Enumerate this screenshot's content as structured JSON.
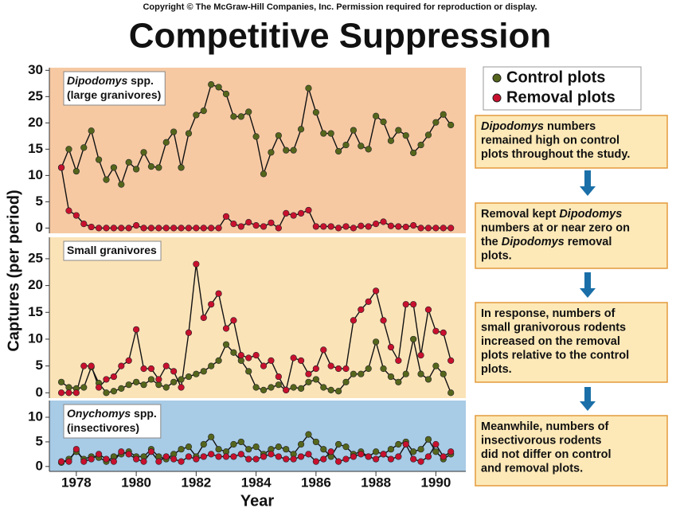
{
  "copyright": "Copyright © The McGraw-Hill Companies, Inc. Permission required for reproduction or display.",
  "title": "Competitive Suppression",
  "ylabel": "Captures (per period)",
  "xlabel": "Year",
  "annotations": [
    [
      [
        {
          "t": "Dipodomys",
          "i": true
        },
        {
          "t": " numbers"
        }
      ],
      [
        {
          "t": "remained high on control"
        }
      ],
      [
        {
          "t": "plots throughout the study."
        }
      ]
    ],
    [
      [
        {
          "t": "Removal kept "
        },
        {
          "t": "Dipodomys",
          "i": true
        }
      ],
      [
        {
          "t": "numbers at or near zero on"
        }
      ],
      [
        {
          "t": "the "
        },
        {
          "t": "Dipodomys",
          "i": true
        },
        {
          "t": " removal"
        }
      ],
      [
        {
          "t": "plots."
        }
      ]
    ],
    [
      [
        {
          "t": "In response, numbers of"
        }
      ],
      [
        {
          "t": "small granivorous rodents"
        }
      ],
      [
        {
          "t": "increased on the removal"
        }
      ],
      [
        {
          "t": "plots relative to the control"
        }
      ],
      [
        {
          "t": "plots."
        }
      ]
    ],
    [
      [
        {
          "t": "Meanwhile, numbers of"
        }
      ],
      [
        {
          "t": "insectivorous rodents"
        }
      ],
      [
        {
          "t": "did not differ on control"
        }
      ],
      [
        {
          "t": "and removal plots."
        }
      ]
    ]
  ],
  "chart_data": [
    {
      "type": "line",
      "label": [
        [
          {
            "t": "Dipodomys",
            "i": true
          },
          {
            "t": " spp."
          }
        ],
        [
          {
            "t": "(large granivores)"
          }
        ]
      ],
      "background": "#f6c9a3",
      "xlim": [
        1977.1,
        1991
      ],
      "ylim": [
        -1,
        30.5
      ],
      "yticks": [
        0,
        5,
        10,
        15,
        20,
        25,
        30
      ],
      "x": [
        1977.5,
        1977.75,
        1978,
        1978.25,
        1978.5,
        1978.75,
        1979,
        1979.25,
        1979.5,
        1979.75,
        1980,
        1980.25,
        1980.5,
        1980.75,
        1981,
        1981.25,
        1981.5,
        1981.75,
        1982,
        1982.25,
        1982.5,
        1982.75,
        1983,
        1983.25,
        1983.5,
        1983.75,
        1984,
        1984.25,
        1984.5,
        1984.75,
        1985,
        1985.25,
        1985.5,
        1985.75,
        1986,
        1986.25,
        1986.5,
        1986.75,
        1987,
        1987.25,
        1987.5,
        1987.75,
        1988,
        1988.25,
        1988.5,
        1988.75,
        1989,
        1989.25,
        1989.5,
        1989.75,
        1990,
        1990.25,
        1990.5
      ],
      "series": [
        {
          "name": "Control plots",
          "color": "#55661c",
          "values": [
            11.5,
            15,
            10.8,
            15.3,
            18.5,
            13,
            9.2,
            11.5,
            8.3,
            12.5,
            11.2,
            14.4,
            11.7,
            11.5,
            16.3,
            18.3,
            11.5,
            18,
            21.5,
            22.3,
            27.3,
            26.8,
            25.5,
            21.2,
            21.2,
            22.1,
            17.4,
            10.3,
            14.4,
            17.6,
            14.8,
            14.8,
            18.8,
            26.6,
            22,
            18,
            18,
            14.6,
            15.8,
            18.6,
            15.6,
            15,
            21.3,
            20.2,
            16.6,
            18.6,
            17.6,
            14.3,
            15.8,
            17.7,
            20.1,
            21.6,
            19.6
          ]
        },
        {
          "name": "Removal plots",
          "color": "#c8102e",
          "values": [
            11.5,
            3.3,
            2.4,
            0.8,
            0.2,
            0,
            0,
            0,
            0,
            0,
            0.5,
            0,
            0,
            0,
            0,
            0,
            0,
            0,
            0,
            0,
            0,
            0,
            2.2,
            0.8,
            0.3,
            1.1,
            0.5,
            0.3,
            1,
            0,
            2.8,
            2.4,
            2.8,
            3.4,
            0.3,
            0.3,
            0.3,
            0,
            0.3,
            0,
            0.4,
            0.3,
            0.8,
            1.2,
            0.4,
            0.3,
            0.2,
            0.5,
            0,
            0,
            0,
            0,
            0
          ]
        }
      ]
    },
    {
      "type": "line",
      "label": [
        [
          {
            "t": "Small granivores"
          }
        ]
      ],
      "background": "#fbe3b8",
      "xlim": [
        1977.1,
        1991
      ],
      "ylim": [
        -1,
        29
      ],
      "yticks": [
        0,
        5,
        10,
        15,
        20,
        25
      ],
      "x": [
        1977.5,
        1977.75,
        1978,
        1978.25,
        1978.5,
        1978.75,
        1979,
        1979.25,
        1979.5,
        1979.75,
        1980,
        1980.25,
        1980.5,
        1980.75,
        1981,
        1981.25,
        1981.5,
        1981.75,
        1982,
        1982.25,
        1982.5,
        1982.75,
        1983,
        1983.25,
        1983.5,
        1983.75,
        1984,
        1984.25,
        1984.5,
        1984.75,
        1985,
        1985.25,
        1985.5,
        1985.75,
        1986,
        1986.25,
        1986.5,
        1986.75,
        1987,
        1987.25,
        1987.5,
        1987.75,
        1988,
        1988.25,
        1988.5,
        1988.75,
        1989,
        1989.25,
        1989.5,
        1989.75,
        1990,
        1990.25,
        1990.5
      ],
      "series": [
        {
          "name": "Control plots",
          "color": "#55661c",
          "values": [
            2,
            1,
            0.8,
            1,
            4.8,
            1.8,
            0,
            0.3,
            0.8,
            1.5,
            2,
            1.5,
            2.5,
            1.5,
            1,
            2,
            2.5,
            3,
            3.5,
            4,
            5,
            6,
            9,
            7.5,
            6,
            4,
            1,
            0.5,
            1,
            1.5,
            0.5,
            1,
            0.8,
            2,
            2.5,
            1,
            0.5,
            0.3,
            2,
            3.5,
            3.5,
            4.5,
            9.5,
            4.5,
            3,
            2,
            3.5,
            10,
            3.5,
            2.5,
            5,
            3.5,
            0
          ]
        },
        {
          "name": "Removal plots",
          "color": "#c8102e",
          "values": [
            0,
            0,
            0,
            5,
            5,
            1,
            2.5,
            3,
            5,
            6,
            11.8,
            4.5,
            4.5,
            2.5,
            5,
            4,
            1,
            11.2,
            24,
            14,
            16.5,
            18.5,
            12,
            13.5,
            7,
            6.5,
            7,
            5,
            6,
            3,
            0.5,
            6.5,
            6,
            3.5,
            4.5,
            8,
            5,
            4.5,
            4.5,
            13.5,
            15.5,
            17,
            19,
            13.5,
            8.5,
            6,
            16.5,
            16.5,
            7,
            15.5,
            11.5,
            11.2,
            6
          ]
        }
      ]
    },
    {
      "type": "line",
      "label": [
        [
          {
            "t": "Onychomys",
            "i": true
          },
          {
            "t": " spp."
          }
        ],
        [
          {
            "t": "(insectivores)"
          }
        ]
      ],
      "background": "#a8cbe6",
      "xlim": [
        1977.1,
        1991
      ],
      "ylim": [
        -1,
        13.4
      ],
      "yticks": [
        0,
        5,
        10
      ],
      "xticks": [
        1978,
        1980,
        1982,
        1984,
        1986,
        1988,
        1990
      ],
      "x": [
        1977.5,
        1977.75,
        1978,
        1978.25,
        1978.5,
        1978.75,
        1979,
        1979.25,
        1979.5,
        1979.75,
        1980,
        1980.25,
        1980.5,
        1980.75,
        1981,
        1981.25,
        1981.5,
        1981.75,
        1982,
        1982.25,
        1982.5,
        1982.75,
        1983,
        1983.25,
        1983.5,
        1983.75,
        1984,
        1984.25,
        1984.5,
        1984.75,
        1985,
        1985.25,
        1985.5,
        1985.75,
        1986,
        1986.25,
        1986.5,
        1986.75,
        1987,
        1987.25,
        1987.5,
        1987.75,
        1988,
        1988.25,
        1988.5,
        1988.75,
        1989,
        1989.25,
        1989.5,
        1989.75,
        1990,
        1990.25,
        1990.5
      ],
      "series": [
        {
          "name": "Control plots",
          "color": "#55661c",
          "values": [
            0.8,
            1.5,
            3,
            1.5,
            2,
            1.8,
            1,
            2,
            2.5,
            3,
            2,
            2,
            3.5,
            2,
            1.5,
            2.5,
            3.5,
            4,
            2,
            4.5,
            6,
            3.5,
            3,
            4.5,
            5,
            3.5,
            4,
            2.5,
            3.5,
            4,
            3.5,
            2.5,
            4.5,
            6.5,
            5,
            3.5,
            2,
            4.5,
            4,
            2.5,
            3,
            2,
            3,
            2.5,
            3.5,
            4.5,
            5,
            3,
            3.5,
            5.5,
            3,
            1.5,
            2.5
          ]
        },
        {
          "name": "Removal plots",
          "color": "#c8102e",
          "values": [
            1,
            1,
            3.5,
            1,
            1.5,
            2.5,
            1.5,
            1,
            3,
            2.5,
            1.5,
            1,
            3,
            1,
            2,
            1.5,
            1,
            2,
            1.5,
            2,
            2.5,
            2,
            2,
            2,
            2.5,
            1.5,
            1.5,
            2,
            2.5,
            2,
            1.5,
            1.5,
            2,
            2.5,
            1,
            1.5,
            3,
            1,
            1.5,
            2,
            2.5,
            2,
            1.5,
            2.5,
            1.5,
            2,
            4.5,
            1.5,
            1,
            2,
            4.5,
            2,
            3
          ]
        }
      ]
    }
  ]
}
